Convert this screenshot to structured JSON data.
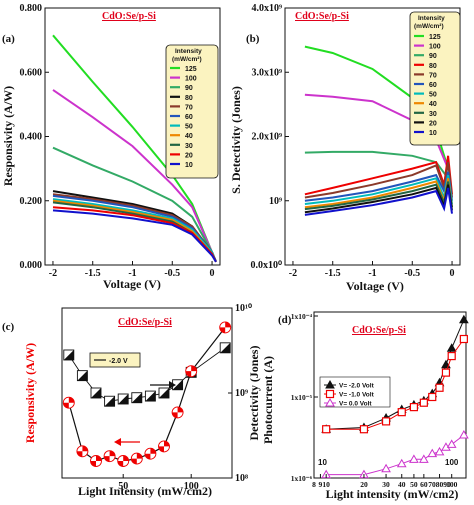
{
  "chart_data": [
    {
      "panel": "(a)",
      "type": "line",
      "title": "CdO:Se/p-Si",
      "xlabel": "Voltage (V)",
      "ylabel": "Responsivity (A/W)",
      "xlim": [
        -2.1,
        0.1
      ],
      "ylim": [
        0,
        0.8
      ],
      "xticks": [
        "-2",
        "-1.5",
        "-1",
        "-0.5",
        "0"
      ],
      "yticks": [
        "0.000",
        "0.200",
        "0.400",
        "0.600",
        "0.800"
      ],
      "legend_title": [
        "Intensity",
        "(mW/cm²)"
      ],
      "legend_position": "top-right",
      "series": [
        {
          "name": "125",
          "color": "#22dd22",
          "x": [
            -2,
            -1.5,
            -1,
            -0.5,
            -0.25,
            0,
            0.05
          ],
          "y": [
            0.715,
            0.57,
            0.43,
            0.28,
            0.19,
            0.04,
            0.01
          ]
        },
        {
          "name": "100",
          "color": "#cc33cc",
          "x": [
            -2,
            -1.5,
            -1,
            -0.5,
            -0.25,
            0,
            0.05
          ],
          "y": [
            0.545,
            0.46,
            0.37,
            0.25,
            0.18,
            0.04,
            0.01
          ]
        },
        {
          "name": "90",
          "color": "#33aa66",
          "x": [
            -2,
            -1.5,
            -1,
            -0.5,
            -0.25,
            0,
            0.05
          ],
          "y": [
            0.365,
            0.31,
            0.26,
            0.2,
            0.15,
            0.04,
            0.01
          ]
        },
        {
          "name": "80",
          "color": "#111111",
          "x": [
            -2,
            -1.5,
            -1,
            -0.5,
            -0.25,
            0,
            0.05
          ],
          "y": [
            0.23,
            0.21,
            0.19,
            0.16,
            0.12,
            0.04,
            0.01
          ]
        },
        {
          "name": "70",
          "color": "#8b3a2a",
          "x": [
            -2,
            -1.5,
            -1,
            -0.5,
            -0.25,
            0,
            0.05
          ],
          "y": [
            0.22,
            0.205,
            0.185,
            0.155,
            0.12,
            0.04,
            0.01
          ]
        },
        {
          "name": "60",
          "color": "#2255bb",
          "x": [
            -2,
            -1.5,
            -1,
            -0.5,
            -0.25,
            0,
            0.05
          ],
          "y": [
            0.215,
            0.2,
            0.18,
            0.15,
            0.115,
            0.04,
            0.01
          ]
        },
        {
          "name": "50",
          "color": "#00bbbb",
          "x": [
            -2,
            -1.5,
            -1,
            -0.5,
            -0.25,
            0,
            0.05
          ],
          "y": [
            0.205,
            0.19,
            0.17,
            0.145,
            0.11,
            0.04,
            0.01
          ]
        },
        {
          "name": "40",
          "color": "#ee8800",
          "x": [
            -2,
            -1.5,
            -1,
            -0.5,
            -0.25,
            0,
            0.05
          ],
          "y": [
            0.2,
            0.185,
            0.165,
            0.14,
            0.105,
            0.035,
            0.01
          ]
        },
        {
          "name": "30",
          "color": "#226644",
          "x": [
            -2,
            -1.5,
            -1,
            -0.5,
            -0.25,
            0,
            0.05
          ],
          "y": [
            0.195,
            0.18,
            0.16,
            0.135,
            0.1,
            0.035,
            0.01
          ]
        },
        {
          "name": "20",
          "color": "#ee0000",
          "x": [
            -2,
            -1.5,
            -1,
            -0.5,
            -0.25,
            0,
            0.05
          ],
          "y": [
            0.18,
            0.17,
            0.155,
            0.13,
            0.1,
            0.035,
            0.01
          ]
        },
        {
          "name": "10",
          "color": "#1111cc",
          "x": [
            -2,
            -1.5,
            -1,
            -0.5,
            -0.25,
            0,
            0.05
          ],
          "y": [
            0.17,
            0.16,
            0.145,
            0.125,
            0.095,
            0.03,
            0.01
          ]
        }
      ]
    },
    {
      "panel": "(b)",
      "type": "line",
      "title": "CdO:Se/p-Si",
      "xlabel": "Voltage (V)",
      "ylabel": "S. Detectivity (Jones)",
      "xlim": [
        -2.1,
        0.1
      ],
      "ylim": [
        0,
        4000000000.0
      ],
      "xticks": [
        "-2",
        "-1.5",
        "-1",
        "-0.5",
        "0"
      ],
      "yticks": [
        "0.0x10⁰",
        "10⁹",
        "2.0x10⁹",
        "3.0x10⁹",
        "4.0x10⁹"
      ],
      "legend_title": [
        "Intensity",
        "(mW/cm²)"
      ],
      "legend_position": "top-right",
      "series": [
        {
          "name": "125",
          "color": "#22dd22",
          "x": [
            -1.85,
            -1.5,
            -1,
            -0.5,
            -0.2,
            -0.05
          ],
          "y": [
            3400000000.0,
            3300000000.0,
            3050000000.0,
            2600000000.0,
            2100000000.0,
            1500000000.0
          ]
        },
        {
          "name": "100",
          "color": "#cc33cc",
          "x": [
            -1.85,
            -1.5,
            -1,
            -0.5,
            -0.2,
            -0.05
          ],
          "y": [
            2650000000.0,
            2620000000.0,
            2550000000.0,
            2250000000.0,
            1950000000.0,
            1500000000.0
          ]
        },
        {
          "name": "90",
          "color": "#33aa66",
          "x": [
            -1.85,
            -1.5,
            -1,
            -0.5,
            -0.2,
            -0.05
          ],
          "y": [
            1750000000.0,
            1760000000.0,
            1760000000.0,
            1700000000.0,
            1600000000.0,
            1350000000.0
          ]
        },
        {
          "name": "80",
          "color": "#ee0000",
          "x": [
            -1.85,
            -1.5,
            -1,
            -0.5,
            -0.2,
            -0.1,
            -0.05,
            0
          ],
          "y": [
            1100000000.0,
            1200000000.0,
            1350000000.0,
            1500000000.0,
            1600000000.0,
            1250000000.0,
            1700000000.0,
            1100000000.0
          ]
        },
        {
          "name": "70",
          "color": "#8b3a2a",
          "x": [
            -1.85,
            -1.5,
            -1,
            -0.5,
            -0.2,
            -0.1,
            -0.05,
            0
          ],
          "y": [
            1050000000.0,
            1120000000.0,
            1250000000.0,
            1400000000.0,
            1550000000.0,
            1200000000.0,
            1600000000.0,
            1050000000.0
          ]
        },
        {
          "name": "60",
          "color": "#2255bb",
          "x": [
            -1.85,
            -1.5,
            -1,
            -0.5,
            -0.2,
            -0.1,
            -0.05,
            0
          ],
          "y": [
            1000000000.0,
            1050000000.0,
            1150000000.0,
            1300000000.0,
            1400000000.0,
            1150000000.0,
            1450000000.0,
            1000000000.0
          ]
        },
        {
          "name": "50",
          "color": "#00bbbb",
          "x": [
            -1.85,
            -1.5,
            -1,
            -0.5,
            -0.2,
            -0.1,
            -0.05,
            0
          ],
          "y": [
            950000000.0,
            1000000000.0,
            1100000000.0,
            1250000000.0,
            1350000000.0,
            1050000000.0,
            1400000000.0,
            950000000.0
          ]
        },
        {
          "name": "40",
          "color": "#ee8800",
          "x": [
            -1.85,
            -1.5,
            -1,
            -0.5,
            -0.2,
            -0.1,
            -0.05,
            0
          ],
          "y": [
            900000000.0,
            950000000.0,
            1050000000.0,
            1200000000.0,
            1300000000.0,
            1000000000.0,
            1350000000.0,
            900000000.0
          ]
        },
        {
          "name": "30",
          "color": "#226644",
          "x": [
            -1.85,
            -1.5,
            -1,
            -0.5,
            -0.2,
            -0.1,
            -0.05,
            0
          ],
          "y": [
            870000000.0,
            920000000.0,
            1020000000.0,
            1150000000.0,
            1250000000.0,
            970000000.0,
            1300000000.0,
            900000000.0
          ]
        },
        {
          "name": "20",
          "color": "#111111",
          "x": [
            -1.85,
            -1.5,
            -1,
            -0.5,
            -0.2,
            -0.1,
            -0.05,
            0
          ],
          "y": [
            820000000.0,
            880000000.0,
            980000000.0,
            1100000000.0,
            1200000000.0,
            920000000.0,
            1250000000.0,
            850000000.0
          ]
        },
        {
          "name": "10",
          "color": "#1111cc",
          "x": [
            -1.85,
            -1.5,
            -1,
            -0.5,
            -0.2,
            -0.1,
            -0.05,
            0
          ],
          "y": [
            780000000.0,
            840000000.0,
            930000000.0,
            1050000000.0,
            1150000000.0,
            880000000.0,
            1200000000.0,
            800000000.0
          ]
        }
      ]
    },
    {
      "panel": "(c)",
      "type": "line",
      "title": "CdO:Se/p-Si",
      "xlabel": "Light Intensity (mW/cm2)",
      "ylabel": "Responsivity (A/W)",
      "ylabel_right": "Detectivity (Jones)",
      "xlim": [
        10,
        125
      ],
      "ylim": [
        0.1,
        0.8
      ],
      "ylim_right": [
        100000000.0,
        10000000000.0
      ],
      "y_right_scale": "log",
      "xticks": [
        "50",
        "100"
      ],
      "yticks_right": [
        "10⁸",
        "10⁹",
        "10¹⁰"
      ],
      "legend": [
        "-2.0 V"
      ],
      "legend_position": "top-left",
      "series": [
        {
          "name": "Responsivity",
          "color": "#ee0000",
          "marker": "circle",
          "x": [
            10,
            20,
            30,
            40,
            50,
            60,
            70,
            80,
            90,
            100,
            125
          ],
          "y": [
            0.41,
            0.21,
            0.17,
            0.19,
            0.17,
            0.18,
            0.2,
            0.23,
            0.37,
            0.54,
            0.72
          ]
        },
        {
          "name": "Detectivity",
          "color": "#111111",
          "marker": "square",
          "x": [
            10,
            20,
            30,
            40,
            50,
            60,
            70,
            80,
            90,
            100,
            125
          ],
          "y": [
            2800000000.0,
            1600000000.0,
            1000000000.0,
            800000000.0,
            850000000.0,
            880000000.0,
            920000000.0,
            1000000000.0,
            1250000000.0,
            1750000000.0,
            3400000000.0
          ]
        }
      ]
    },
    {
      "panel": "(d)",
      "type": "line",
      "title": "CdO:Se/p-Si",
      "xlabel": "Light intensity (mW/cm2)",
      "ylabel": "Photocurrent (A)",
      "x_scale": "log",
      "y_scale": "log",
      "xlim": [
        8,
        130
      ],
      "ylim": [
        1e-06,
        0.0001
      ],
      "xticks": [
        "8",
        "9",
        "10",
        "20",
        "30",
        "40",
        "50",
        "60",
        "708090",
        "100"
      ],
      "xtick_values": [
        8,
        9,
        10,
        20,
        30,
        40,
        50,
        60,
        80,
        100
      ],
      "yticks": [
        "1x10⁻⁶",
        "1x10⁻⁵",
        "1x10⁻⁴"
      ],
      "annotations": [
        "10",
        "100"
      ],
      "legend_position": "center-left",
      "series": [
        {
          "name": "V= -2.0 Volt",
          "color": "#111111",
          "marker": "triangle",
          "x": [
            10,
            20,
            30,
            40,
            50,
            60,
            70,
            80,
            90,
            100,
            125
          ],
          "y": [
            4e-06,
            4.2e-06,
            5.5e-06,
            7e-06,
            8e-06,
            9e-06,
            1.1e-05,
            1.5e-05,
            2.5e-05,
            4e-05,
            9e-05
          ]
        },
        {
          "name": "V= -1.0 Volt",
          "color": "#ee0000",
          "marker": "square",
          "x": [
            10,
            20,
            30,
            40,
            50,
            60,
            70,
            80,
            90,
            100,
            125
          ],
          "y": [
            4e-06,
            4e-06,
            5e-06,
            6.5e-06,
            7.5e-06,
            8.5e-06,
            1e-05,
            1.3e-05,
            2e-05,
            3.2e-05,
            5.2e-05
          ]
        },
        {
          "name": "V= 0.0 Volt",
          "color": "#cc33cc",
          "marker": "triangle-up",
          "x": [
            10,
            20,
            30,
            40,
            50,
            60,
            70,
            80,
            90,
            100,
            125
          ],
          "y": [
            1.1e-06,
            1.1e-06,
            1.3e-06,
            1.5e-06,
            1.7e-06,
            1.7e-06,
            2e-06,
            2.1e-06,
            2.4e-06,
            2.6e-06,
            3.4e-06
          ]
        }
      ]
    }
  ]
}
